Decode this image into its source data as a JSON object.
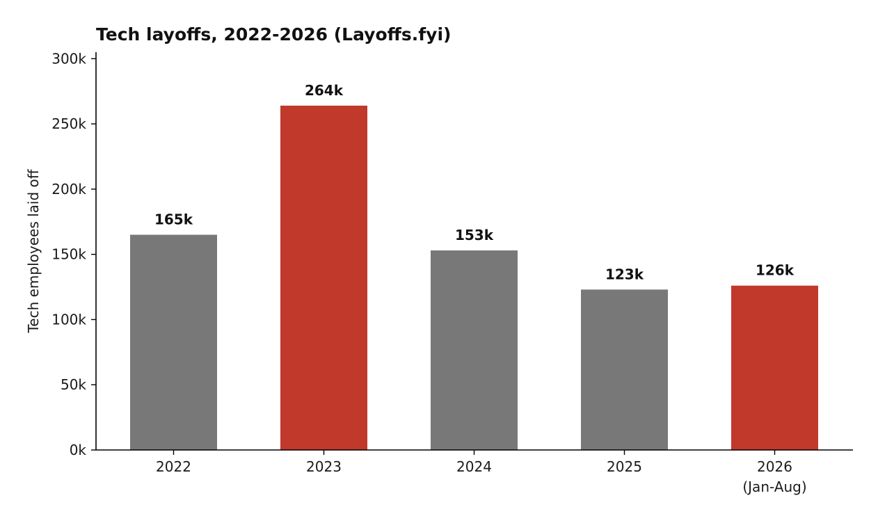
{
  "chart_data": {
    "type": "bar",
    "title": "Tech layoffs, 2022-2026 (Layoffs.fyi)",
    "xlabel": "",
    "ylabel": "Tech employees laid off",
    "categories": [
      [
        "2022"
      ],
      [
        "2023"
      ],
      [
        "2024"
      ],
      [
        "2025"
      ],
      [
        "2026",
        "(Jan-Aug)"
      ]
    ],
    "values": [
      165000,
      264000,
      153000,
      123000,
      126000
    ],
    "data_labels": [
      "165k",
      "264k",
      "153k",
      "123k",
      "126k"
    ],
    "bar_colors": [
      "#787878",
      "#c0392b",
      "#787878",
      "#787878",
      "#c0392b"
    ],
    "ylim": [
      0,
      305000
    ],
    "yticks": [
      0,
      50000,
      100000,
      150000,
      200000,
      250000,
      300000
    ],
    "ytick_labels": [
      "0k",
      "50k",
      "100k",
      "150k",
      "200k",
      "250k",
      "300k"
    ],
    "grid": false,
    "legend": "none"
  }
}
